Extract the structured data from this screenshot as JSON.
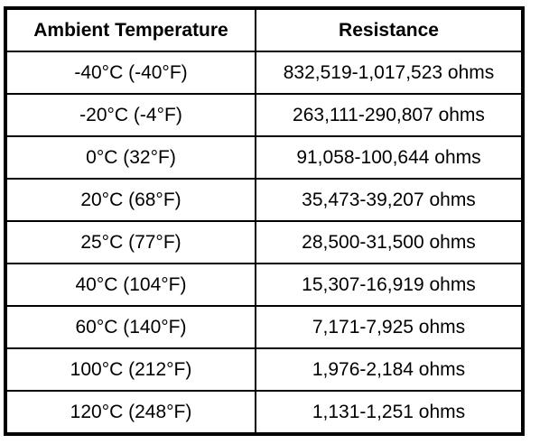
{
  "page": {
    "background_color": "#ffffff",
    "text_color": "#000000",
    "border_color": "#000000"
  },
  "table": {
    "headers": {
      "temperature": "Ambient Temperature",
      "resistance": "Resistance"
    },
    "rows": [
      {
        "temperature": "-40°C (-40°F)",
        "resistance": "832,519-1,017,523 ohms"
      },
      {
        "temperature": "-20°C (-4°F)",
        "resistance": "263,111-290,807 ohms"
      },
      {
        "temperature": "0°C (32°F)",
        "resistance": "91,058-100,644 ohms"
      },
      {
        "temperature": "20°C (68°F)",
        "resistance": "35,473-39,207 ohms"
      },
      {
        "temperature": "25°C (77°F)",
        "resistance": "28,500-31,500 ohms"
      },
      {
        "temperature": "40°C (104°F)",
        "resistance": "15,307-16,919 ohms"
      },
      {
        "temperature": "60°C (140°F)",
        "resistance": "7,171-7,925 ohms"
      },
      {
        "temperature": "100°C (212°F)",
        "resistance": "1,976-2,184 ohms"
      },
      {
        "temperature": "120°C (248°F)",
        "resistance": "1,131-1,251 ohms"
      }
    ]
  },
  "chart_data": {
    "type": "table",
    "title": "",
    "columns": [
      "Ambient Temperature",
      "Resistance"
    ],
    "rows": [
      [
        "-40°C (-40°F)",
        "832,519-1,017,523 ohms"
      ],
      [
        "-20°C (-4°F)",
        "263,111-290,807 ohms"
      ],
      [
        "0°C (32°F)",
        "91,058-100,644 ohms"
      ],
      [
        "20°C (68°F)",
        "35,473-39,207 ohms"
      ],
      [
        "25°C (77°F)",
        "28,500-31,500 ohms"
      ],
      [
        "40°C (104°F)",
        "15,307-16,919 ohms"
      ],
      [
        "60°C (140°F)",
        "7,171-7,925 ohms"
      ],
      [
        "100°C (212°F)",
        "1,976-2,184 ohms"
      ],
      [
        "120°C (248°F)",
        "1,131-1,251 ohms"
      ]
    ],
    "temperatures_c": [
      -40,
      -20,
      0,
      20,
      25,
      40,
      60,
      100,
      120
    ],
    "temperatures_f": [
      -40,
      -4,
      32,
      68,
      77,
      104,
      140,
      212,
      248
    ],
    "resistance_min_ohms": [
      832519,
      263111,
      91058,
      35473,
      28500,
      15307,
      7171,
      1976,
      1131
    ],
    "resistance_max_ohms": [
      1017523,
      290807,
      100644,
      39207,
      31500,
      16919,
      7925,
      2184,
      1251
    ],
    "layout": {
      "grid": true,
      "header_bold": true
    }
  }
}
